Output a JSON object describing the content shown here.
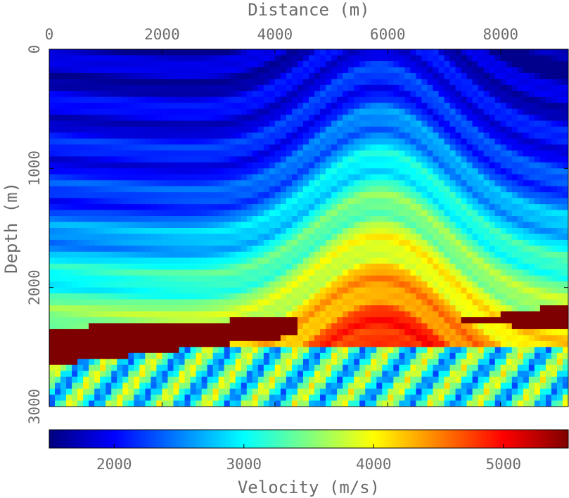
{
  "chart_data": {
    "type": "heatmap",
    "title": "",
    "xlabel": "Distance (m)",
    "ylabel": "Depth (m)",
    "xlim": [
      0,
      9200
    ],
    "ylim": [
      0,
      3000
    ],
    "x_ticks": [
      0,
      2000,
      4000,
      6000,
      8000
    ],
    "y_ticks": [
      0,
      1000,
      2000,
      3000
    ],
    "x_axis_position": "top",
    "y_axis_inverted": true,
    "grid": false,
    "description_model": "layered velocity model with folded and faulted strata and a dipping high-velocity salt body",
    "colorbar": {
      "label": "Velocity (m/s)",
      "range": [
        1500,
        5500
      ],
      "ticks": [
        2000,
        3000,
        4000,
        5000
      ],
      "colormap": "jet",
      "colormap_stops": [
        "#00007f",
        "#0000ff",
        "#0080ff",
        "#00ffff",
        "#80ff80",
        "#ffff00",
        "#ff8000",
        "#ff0000",
        "#7f0000"
      ]
    },
    "bodies": {
      "salt_velocity": 5500,
      "top_region_velocity_range": [
        1600,
        2200
      ],
      "deep_region_velocity_range": [
        2800,
        4800
      ]
    }
  }
}
